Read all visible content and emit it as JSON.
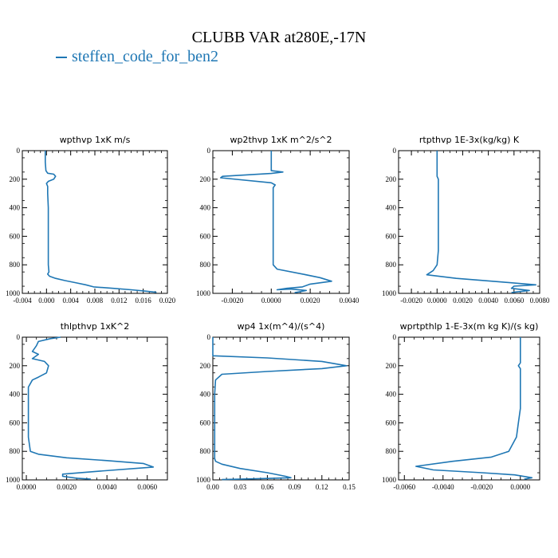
{
  "figure": {
    "title": "CLUBB VAR at280E,-17N",
    "legend": [
      {
        "label": "steffen_code_for_ben2",
        "color": "#1f77b4"
      }
    ]
  },
  "chart_data": [
    {
      "type": "line",
      "title": "wpthvp  1xK m/s",
      "xlim": [
        -0.004,
        0.02
      ],
      "ylim": [
        1000,
        0
      ],
      "xticks": [
        -0.004,
        0,
        0.004,
        0.008,
        0.012,
        0.016,
        0.02
      ],
      "xticklabels": [
        "-0.004",
        "0.000",
        "0.004",
        "0.008",
        "0.012",
        "0.016",
        "0.020"
      ],
      "yticks": [
        0,
        200,
        400,
        600,
        800,
        1000
      ],
      "yticklabels": [
        "0",
        "200",
        "400",
        "600",
        "800",
        "1000"
      ],
      "series": [
        {
          "color": "#1f77b4",
          "x": [
            -0.0002,
            -0.0002,
            -0.0001,
            0.0002,
            0.0012,
            0.0015,
            0.0012,
            0.0003,
            0.0,
            0.0002,
            0.0002,
            0.0003,
            0.0003,
            0.0003,
            0.0003,
            0.0003,
            0.0004,
            0.0002,
            0.0005,
            0.0015,
            0.003,
            0.0048,
            0.0065,
            0.0078,
            0.011,
            0.014,
            0.0165,
            0.0182
          ],
          "y": [
            0,
            80,
            140,
            158,
            165,
            180,
            200,
            215,
            230,
            250,
            300,
            400,
            500,
            600,
            700,
            800,
            850,
            865,
            880,
            895,
            910,
            925,
            940,
            955,
            965,
            975,
            985,
            993
          ]
        }
      ]
    },
    {
      "type": "line",
      "title": "wp2thvp  1xK m^2/s^2",
      "xlim": [
        -0.003,
        0.004
      ],
      "ylim": [
        1000,
        0
      ],
      "xticks": [
        -0.002,
        0,
        0.002,
        0.004
      ],
      "xticklabels": [
        "-0.0020",
        "0.0000",
        "0.0020",
        "0.0040"
      ],
      "yticks": [
        0,
        200,
        400,
        600,
        800,
        1000
      ],
      "yticklabels": [
        "0",
        "200",
        "400",
        "600",
        "800",
        "1000"
      ],
      "series": [
        {
          "color": "#1f77b4",
          "x": [
            0.0,
            0.0,
            0.0,
            0.0006,
            0.0,
            -0.0025,
            -0.0026,
            0.0,
            0.0002,
            0.0001,
            0.0001,
            0.0001,
            0.0001,
            0.0001,
            0.0001,
            0.0001,
            0.0003,
            0.0016,
            0.0025,
            0.0031,
            0.002,
            0.0016,
            0.0008,
            0.0003,
            0.001,
            0.0018,
            0.0015,
            0.0012
          ],
          "y": [
            0,
            80,
            140,
            150,
            160,
            180,
            190,
            225,
            240,
            260,
            300,
            400,
            500,
            600,
            700,
            800,
            830,
            865,
            890,
            915,
            935,
            955,
            965,
            975,
            970,
            980,
            988,
            995
          ]
        }
      ]
    },
    {
      "type": "line",
      "title": "rtpthvp  1E-3x(kg/kg) K",
      "xlim": [
        -0.003,
        0.008
      ],
      "ylim": [
        1000,
        0
      ],
      "xticks": [
        -0.002,
        0,
        0.002,
        0.004,
        0.006,
        0.008
      ],
      "xticklabels": [
        "-0.0020",
        "0.0000",
        "0.0020",
        "0.0040",
        "0.0060",
        "0.0080"
      ],
      "yticks": [
        0,
        200,
        400,
        600,
        800,
        1000
      ],
      "yticklabels": [
        "0",
        "200",
        "400",
        "600",
        "800",
        "1000"
      ],
      "series": [
        {
          "color": "#1f77b4",
          "x": [
            0.0,
            0.0,
            0.0,
            0.0001,
            0.0001,
            0.0001,
            0.0001,
            0.0001,
            0.0001,
            0.0001,
            0.0,
            -0.0003,
            -0.0008,
            0.0015,
            0.005,
            0.0077,
            0.006,
            0.0058,
            0.0072,
            0.0062,
            0.0058
          ],
          "y": [
            0,
            100,
            180,
            200,
            230,
            300,
            400,
            500,
            600,
            700,
            800,
            840,
            870,
            895,
            920,
            940,
            950,
            965,
            980,
            990,
            995
          ]
        }
      ]
    },
    {
      "type": "line",
      "title": "thlpthvp  1xK^2",
      "xlim": [
        -0.0002,
        0.007
      ],
      "ylim": [
        1000,
        0
      ],
      "xticks": [
        0,
        0.002,
        0.004,
        0.006
      ],
      "xticklabels": [
        "0.0000",
        "0.0020",
        "0.0040",
        "0.0060"
      ],
      "yticks": [
        0,
        200,
        400,
        600,
        800,
        1000
      ],
      "yticklabels": [
        "0",
        "200",
        "400",
        "600",
        "800",
        "1000"
      ],
      "series": [
        {
          "color": "#1f77b4",
          "x": [
            0.0017,
            0.0012,
            0.0006,
            0.0005,
            0.0003,
            0.0006,
            0.0003,
            0.0009,
            0.0011,
            0.001,
            0.0006,
            0.0003,
            0.0001,
            0.0001,
            0.0001,
            0.0001,
            0.0001,
            0.0002,
            0.0006,
            0.002,
            0.004,
            0.0058,
            0.0063,
            0.0035,
            0.0018,
            0.0018,
            0.0025,
            0.0032
          ],
          "y": [
            0,
            10,
            30,
            60,
            100,
            120,
            150,
            170,
            200,
            250,
            280,
            300,
            350,
            400,
            500,
            600,
            700,
            800,
            820,
            845,
            865,
            885,
            910,
            940,
            960,
            975,
            988,
            995
          ]
        }
      ]
    },
    {
      "type": "line",
      "title": "wp4  1x(m^4)/(s^4)",
      "xlim": [
        0,
        0.15
      ],
      "ylim": [
        1000,
        0
      ],
      "xticks": [
        0,
        0.03,
        0.06,
        0.09,
        0.12,
        0.15
      ],
      "xticklabels": [
        "0.00",
        "0.03",
        "0.06",
        "0.09",
        "0.12",
        "0.15"
      ],
      "yticks": [
        0,
        200,
        400,
        600,
        800,
        1000
      ],
      "yticklabels": [
        "0",
        "200",
        "400",
        "600",
        "800",
        "1000"
      ],
      "series": [
        {
          "color": "#1f77b4",
          "x": [
            0.0,
            0.0,
            0.0,
            0.06,
            0.12,
            0.147,
            0.12,
            0.06,
            0.01,
            0.003,
            0.002,
            0.002,
            0.002,
            0.002,
            0.002,
            0.002,
            0.003,
            0.01,
            0.03,
            0.06,
            0.08,
            0.086,
            0.06,
            0.03,
            0.01
          ],
          "y": [
            0,
            80,
            130,
            145,
            170,
            200,
            220,
            240,
            260,
            300,
            400,
            500,
            600,
            700,
            800,
            850,
            870,
            890,
            920,
            950,
            975,
            985,
            990,
            995,
            998
          ]
        }
      ]
    },
    {
      "type": "line",
      "title": "wprtpthlp  1-E-3x(m kg K)/(s kg)",
      "xlim": [
        -0.0063,
        0.001
      ],
      "ylim": [
        1000,
        0
      ],
      "xticks": [
        -0.006,
        -0.004,
        -0.002,
        0
      ],
      "xticklabels": [
        "-0.0060",
        "-0.0040",
        "-0.0020",
        "0.0000"
      ],
      "yticks": [
        0,
        200,
        400,
        600,
        800,
        1000
      ],
      "yticklabels": [
        "0",
        "200",
        "400",
        "600",
        "800",
        "1000"
      ],
      "series": [
        {
          "color": "#1f77b4",
          "x": [
            0.0,
            0.0,
            0.0,
            -0.0001,
            0.0,
            0.0,
            0.0,
            0.0,
            -0.0001,
            -0.0002,
            -0.0006,
            -0.0015,
            -0.0035,
            -0.0054,
            -0.0045,
            -0.002,
            -0.0003,
            0.0006,
            0.0002
          ],
          "y": [
            0,
            100,
            180,
            200,
            220,
            300,
            400,
            500,
            600,
            700,
            800,
            840,
            870,
            905,
            930,
            950,
            965,
            985,
            995
          ]
        }
      ]
    }
  ]
}
